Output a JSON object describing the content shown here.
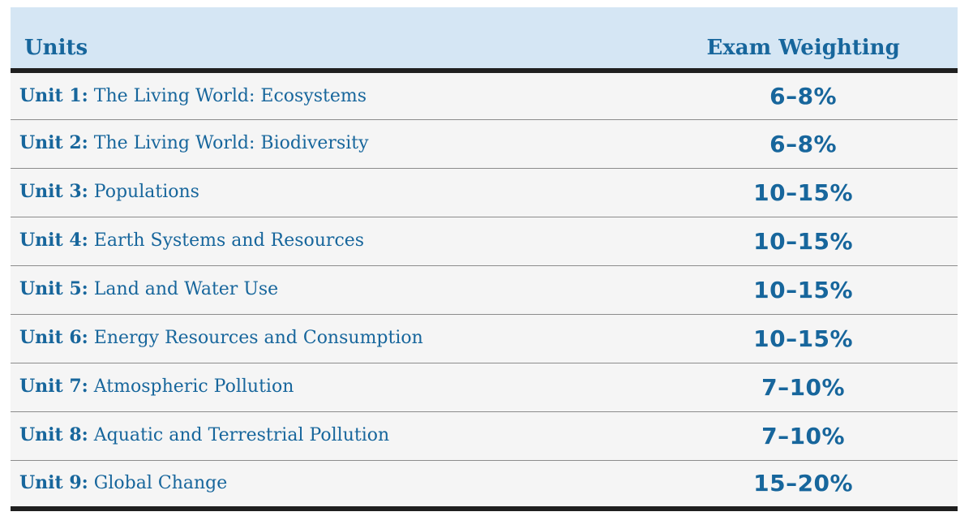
{
  "colors": {
    "header_background": "#d5e6f4",
    "row_background": "#f5f5f5",
    "text_blue": "#17669c",
    "heavy_rule": "#1f1f1f",
    "row_separator": "#8c8c8c"
  },
  "table": {
    "columns": {
      "units": "Units",
      "weighting": "Exam Weighting"
    },
    "rows": [
      {
        "label": "Unit 1:",
        "title": "The Living World: Ecosystems",
        "weighting": "6–8%"
      },
      {
        "label": "Unit 2:",
        "title": "The Living World: Biodiversity",
        "weighting": "6–8%"
      },
      {
        "label": "Unit 3:",
        "title": "Populations",
        "weighting": "10–15%"
      },
      {
        "label": "Unit 4:",
        "title": "Earth Systems and Resources",
        "weighting": "10–15%"
      },
      {
        "label": "Unit 5:",
        "title": "Land and Water Use",
        "weighting": "10–15%"
      },
      {
        "label": "Unit 6:",
        "title": "Energy Resources and Consumption",
        "weighting": "10–15%"
      },
      {
        "label": "Unit 7:",
        "title": "Atmospheric Pollution",
        "weighting": "7–10%"
      },
      {
        "label": "Unit 8:",
        "title": "Aquatic and Terrestrial Pollution",
        "weighting": "7–10%"
      },
      {
        "label": "Unit 9:",
        "title": "Global Change",
        "weighting": "15–20%"
      }
    ]
  }
}
